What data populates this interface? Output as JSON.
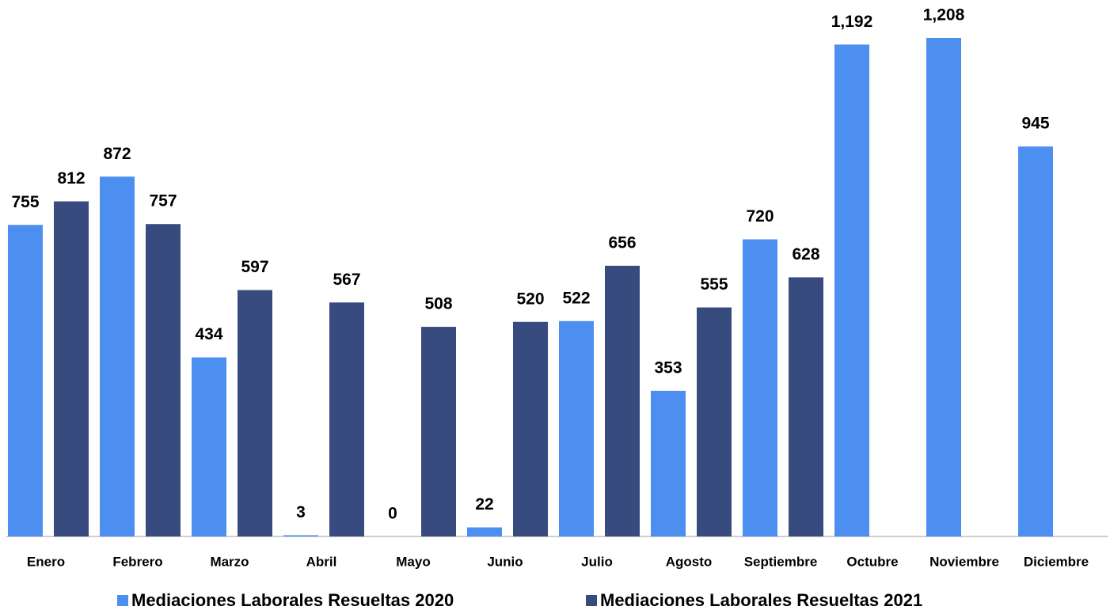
{
  "chart_data": {
    "type": "bar",
    "categories": [
      "Enero",
      "Febrero",
      "Marzo",
      "Abril",
      "Mayo",
      "Junio",
      "Julio",
      "Agosto",
      "Septiembre",
      "Octubre",
      "Noviembre",
      "Diciembre"
    ],
    "series": [
      {
        "name": "Mediaciones Laborales Resueltas 2020",
        "color": "#4d8ff0",
        "values": [
          755,
          872,
          434,
          3,
          0,
          22,
          522,
          353,
          720,
          1192,
          1208,
          945
        ],
        "value_labels": [
          "755",
          "872",
          "434",
          "3",
          "0",
          "22",
          "522",
          "353",
          "720",
          "1,192",
          "1,208",
          "945"
        ]
      },
      {
        "name": "Mediaciones Laborales Resueltas 2021",
        "color": "#374b7e",
        "values": [
          812,
          757,
          597,
          567,
          508,
          520,
          656,
          555,
          628,
          null,
          null,
          null
        ],
        "value_labels": [
          "812",
          "757",
          "597",
          "567",
          "508",
          "520",
          "656",
          "555",
          "628",
          null,
          null,
          null
        ]
      }
    ],
    "ylim": [
      0,
      1300
    ],
    "legend": "bottom"
  }
}
